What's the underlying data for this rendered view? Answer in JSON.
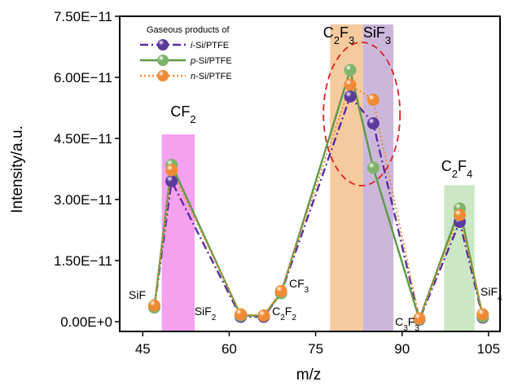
{
  "chart_data": {
    "type": "line",
    "xlabel": "m/z",
    "ylabel": "Intensity/a.u.",
    "xlim": [
      41,
      107
    ],
    "ylim": [
      -2.4e-12,
      7.5e-11
    ],
    "x_ticks": [
      45,
      60,
      75,
      90,
      105
    ],
    "x_tick_labels": [
      "45",
      "60",
      "75",
      "90",
      "105"
    ],
    "y_ticks": [
      0,
      1.5e-11,
      3e-11,
      4.5e-11,
      6e-11,
      7.5e-11
    ],
    "y_tick_labels": [
      "0.00E+0",
      "1.50E−11",
      "3.00E−11",
      "4.50E−11",
      "6.00E−11",
      "7.50E−11"
    ],
    "legend": {
      "title": "Gaseous products of",
      "position": "top-left",
      "entries": [
        {
          "italic": "i",
          "rest": "-Si/PTFE"
        },
        {
          "italic": "p",
          "rest": "-Si/PTFE"
        },
        {
          "italic": "n",
          "rest": "-Si/PTFE"
        }
      ]
    },
    "series": [
      {
        "name": "i-Si/PTFE",
        "color": "#5a2ca0",
        "style": "dash-dot",
        "marker": "#5b3a9e",
        "points": [
          [
            47,
            3.5e-12
          ],
          [
            50,
            3.45e-11
          ],
          [
            62,
            1.2e-12
          ],
          [
            66,
            1.2e-12
          ],
          [
            69,
            7e-12
          ],
          [
            81,
            5.53e-11
          ],
          [
            85,
            4.87e-11
          ],
          [
            93,
            5e-13
          ],
          [
            100,
            2.45e-11
          ],
          [
            104,
            1e-12
          ]
        ]
      },
      {
        "name": "p-Si/PTFE",
        "color": "#5d9a47",
        "style": "solid",
        "marker": "#7eb36a",
        "points": [
          [
            47,
            3.5e-12
          ],
          [
            50,
            3.85e-11
          ],
          [
            62,
            1.5e-12
          ],
          [
            66,
            1.5e-12
          ],
          [
            69,
            7e-12
          ],
          [
            81,
            6.18e-11
          ],
          [
            85,
            3.78e-11
          ],
          [
            93,
            6e-13
          ],
          [
            100,
            2.78e-11
          ],
          [
            104,
            1.2e-12
          ]
        ]
      },
      {
        "name": "n-Si/PTFE",
        "color": "#f08a34",
        "style": "dotted",
        "marker": "#f08a34",
        "points": [
          [
            47,
            4e-12
          ],
          [
            50,
            3.72e-11
          ],
          [
            62,
            1.8e-12
          ],
          [
            66,
            1.5e-12
          ],
          [
            69,
            7.5e-12
          ],
          [
            81,
            5.82e-11
          ],
          [
            85,
            5.45e-11
          ],
          [
            93,
            8e-13
          ],
          [
            100,
            2.62e-11
          ],
          [
            104,
            1.8e-12
          ]
        ]
      }
    ],
    "bands": [
      {
        "x0": 48.3,
        "x1": 54.0,
        "y1": 4.6e-11,
        "color": "#f39cef"
      },
      {
        "x0": 77.5,
        "x1": 83.2,
        "y1": 7.3e-11,
        "color": "#f6c79a"
      },
      {
        "x0": 83.2,
        "x1": 88.5,
        "y1": 7.3e-11,
        "color": "#c9b3d8"
      },
      {
        "x0": 97.3,
        "x1": 102.6,
        "y1": 3.35e-11,
        "color": "#c8e6c0"
      }
    ],
    "annotations": [
      {
        "base": "CF",
        "sub": "2",
        "after": "",
        "sub2": ""
      },
      {
        "base": "C",
        "sub": "2",
        "after": "F",
        "sub2": "3"
      },
      {
        "base": "SiF",
        "sub": "3",
        "after": "",
        "sub2": ""
      },
      {
        "base": "C",
        "sub": "2",
        "after": "F",
        "sub2": "4"
      },
      {
        "base": "SiF",
        "sub": "",
        "after": "",
        "sub2": ""
      },
      {
        "base": "SiF",
        "sub": "2",
        "after": "",
        "sub2": ""
      },
      {
        "base": "C",
        "sub": "2",
        "after": "F",
        "sub2": "2"
      },
      {
        "base": "CF",
        "sub": "3",
        "after": "",
        "sub2": ""
      },
      {
        "base": "C",
        "sub": "3",
        "after": "F",
        "sub2": "3"
      },
      {
        "base": "SiF",
        "sub": "4",
        "after": "",
        "sub2": ""
      }
    ],
    "highlight_ellipse": {
      "color": "#e02020",
      "style": "dashed"
    }
  }
}
